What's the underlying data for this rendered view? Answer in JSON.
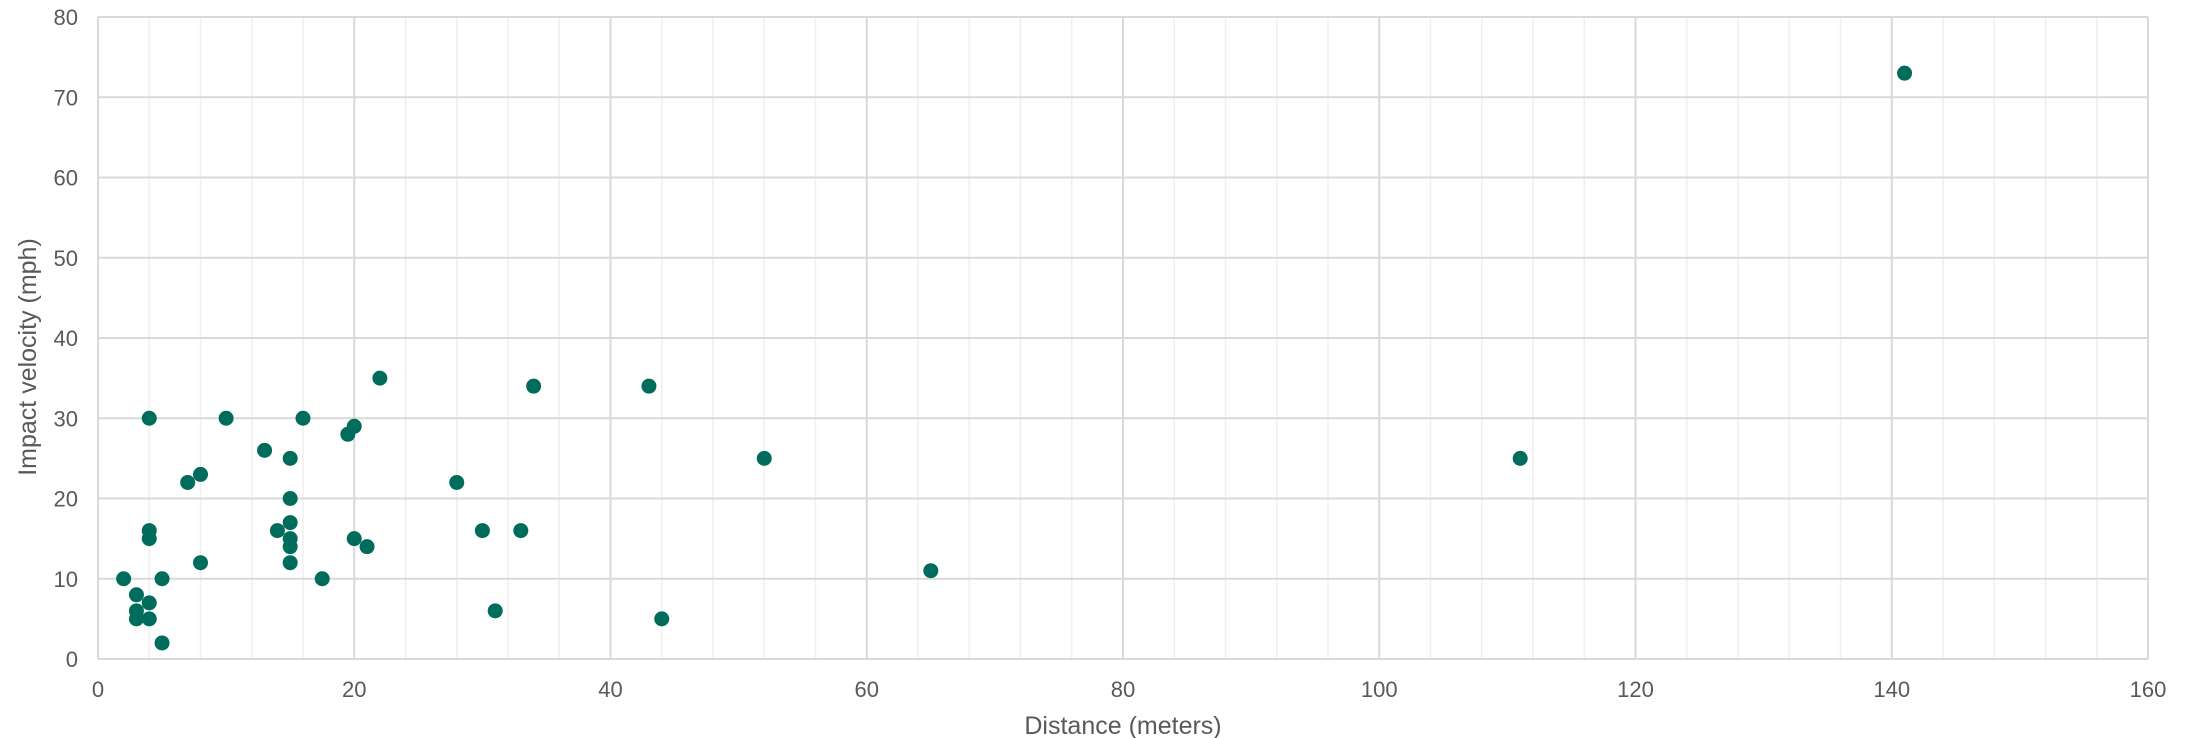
{
  "chart_data": {
    "type": "scatter",
    "title": "",
    "xlabel": "Distance (meters)",
    "ylabel": "Impact velocity (mph)",
    "xlim": [
      0,
      160
    ],
    "ylim": [
      0,
      80
    ],
    "x_ticks": [
      0,
      20,
      40,
      60,
      80,
      100,
      120,
      140,
      160
    ],
    "y_ticks": [
      0,
      10,
      20,
      30,
      40,
      50,
      60,
      70,
      80
    ],
    "x_minor_step": 4,
    "grid": true,
    "legend": "none",
    "marker_color": "#006C5B",
    "series": [
      {
        "points": [
          [
            2,
            10
          ],
          [
            3,
            8
          ],
          [
            3,
            6
          ],
          [
            3,
            5
          ],
          [
            4,
            30
          ],
          [
            4,
            16
          ],
          [
            4,
            15
          ],
          [
            4,
            7
          ],
          [
            4,
            5
          ],
          [
            5,
            10
          ],
          [
            5,
            2
          ],
          [
            7,
            22
          ],
          [
            8,
            23
          ],
          [
            8,
            12
          ],
          [
            10,
            30
          ],
          [
            13,
            26
          ],
          [
            14,
            16
          ],
          [
            15,
            25
          ],
          [
            15,
            20
          ],
          [
            15,
            17
          ],
          [
            15,
            15
          ],
          [
            15,
            14
          ],
          [
            15,
            12
          ],
          [
            16,
            30
          ],
          [
            17.5,
            10
          ],
          [
            19.5,
            28
          ],
          [
            20,
            29
          ],
          [
            20,
            15
          ],
          [
            21,
            14
          ],
          [
            22,
            35
          ],
          [
            28,
            22
          ],
          [
            30,
            16
          ],
          [
            31,
            6
          ],
          [
            33,
            16
          ],
          [
            34,
            34
          ],
          [
            43,
            34
          ],
          [
            44,
            5
          ],
          [
            52,
            25
          ],
          [
            65,
            11
          ],
          [
            111,
            25
          ],
          [
            141,
            73
          ]
        ]
      }
    ]
  }
}
